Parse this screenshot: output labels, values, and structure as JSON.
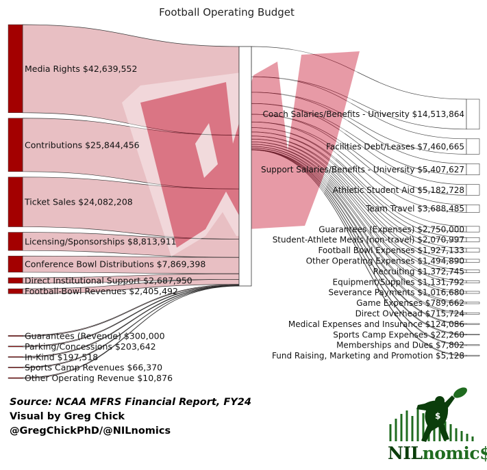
{
  "chart_data": {
    "type": "sankey",
    "title": "Football Operating Budget",
    "sources": [
      {
        "label": "Media Rights $42,639,552",
        "value": 42639552
      },
      {
        "label": "Contributions $25,844,456",
        "value": 25844456
      },
      {
        "label": "Ticket Sales $24,082,208",
        "value": 24082208
      },
      {
        "label": "Licensing/Sponsorships $8,813,911",
        "value": 8813911
      },
      {
        "label": "Conference Bowl Distributions $7,869,398",
        "value": 7869398
      },
      {
        "label": "Direct Institutional Support $2,687,950",
        "value": 2687950
      },
      {
        "label": "Football-Bowl Revenues $2,405,492",
        "value": 2405492
      },
      {
        "label": "Guarantees (Revenue) $300,000",
        "value": 300000
      },
      {
        "label": "Parking/Concessions $203,642",
        "value": 203642
      },
      {
        "label": "In-Kind $197,518",
        "value": 197518
      },
      {
        "label": "Sports Camp Revenues $66,370",
        "value": 66370
      },
      {
        "label": "Other Operating Revenue $10,876",
        "value": 10876
      }
    ],
    "targets": [
      {
        "label": "Coach Salaries/Benefits - University $14,513,864",
        "value": 14513864
      },
      {
        "label": "Facilities Debt/Leases $7,460,665",
        "value": 7460665
      },
      {
        "label": "Support Salaries/Benefits - University $5,407,627",
        "value": 5407627
      },
      {
        "label": "Athletic Student Aid $5,182,728",
        "value": 5182728
      },
      {
        "label": "Team Travel $3,688,485",
        "value": 3688485
      },
      {
        "label": "Guarantees (Expenses) $2,750,000",
        "value": 2750000
      },
      {
        "label": "Student-Athlete Meals (non-travel) $2,070,997",
        "value": 2070997
      },
      {
        "label": "Football Bowl Expenses $1,927,133",
        "value": 1927133
      },
      {
        "label": "Other Operating Expenses $1,494,890",
        "value": 1494890
      },
      {
        "label": "Recruiting $1,372,745",
        "value": 1372745
      },
      {
        "label": "Equipment/Supplies $1,131,792",
        "value": 1131792
      },
      {
        "label": "Severance Payments $1,016,680",
        "value": 1016680
      },
      {
        "label": "Game Expenses $789,662",
        "value": 789662
      },
      {
        "label": "Direct Overhead $715,724",
        "value": 715724
      },
      {
        "label": "Medical Expenses and Insurance $124,086",
        "value": 124086
      },
      {
        "label": "Sports Camp Expenses $22,260",
        "value": 22260
      },
      {
        "label": "Memberships and Dues $7,802",
        "value": 7802
      },
      {
        "label": "Fund Raising, Marketing and Promotion $5,128",
        "value": 5128
      }
    ],
    "colors": {
      "source_node": "#a30000",
      "source_link": "#e6b9bd",
      "target_node": "#ffffff",
      "target_link": "#ffffff",
      "link_stroke": "#222222",
      "watermark": "#c8102e"
    }
  },
  "credits": {
    "source": "Source: NCAA MFRS Financial Report, FY24",
    "visual_by": "Visual by Greg Chick",
    "handles": "@GregChickPhD/@NILnomics"
  },
  "logo": {
    "text_a": "NIL",
    "text_b": "nomic$"
  }
}
